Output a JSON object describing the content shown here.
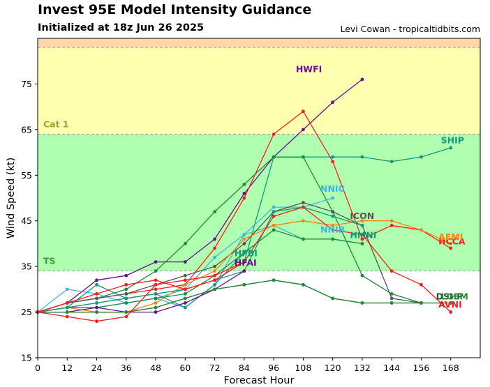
{
  "header": {
    "title": "Invest 95E Model Intensity Guidance",
    "subtitle": "Initialized at 18z Jun 26 2025",
    "credit": "Levi Cowan - tropicaltidbits.com"
  },
  "chart_data": {
    "type": "line",
    "title": "Invest 95E Model Intensity Guidance",
    "subtitle": "Initialized at 18z Jun 26 2025",
    "xlabel": "Forecast Hour",
    "ylabel": "Wind Speed (kt)",
    "xlim": [
      0,
      180
    ],
    "ylim": [
      15,
      85
    ],
    "xticks": [
      0,
      12,
      24,
      36,
      48,
      60,
      72,
      84,
      96,
      108,
      120,
      132,
      144,
      156,
      168
    ],
    "yticks": [
      15,
      25,
      35,
      45,
      55,
      65,
      75
    ],
    "grid": false,
    "bands": [
      {
        "label": "",
        "from": 15,
        "to": 34,
        "color": "#ffffff"
      },
      {
        "label": "TS",
        "from": 34,
        "to": 64,
        "color": "#b0ffb0",
        "label_color": "#3aa03a"
      },
      {
        "label": "Cat 1",
        "from": 64,
        "to": 83,
        "color": "#ffffb0",
        "label_color": "#a8a030"
      },
      {
        "label": "",
        "from": 83,
        "to": 85,
        "color": "#ffd8a8"
      }
    ],
    "series": [
      {
        "name": "HWFI",
        "color": "#6a0d91",
        "label_at": [
          105,
          77.6
        ],
        "x": [
          0,
          12,
          24,
          36,
          48,
          60,
          72,
          84,
          96,
          108,
          120,
          132
        ],
        "y": [
          25,
          27,
          32,
          33,
          36,
          36,
          41,
          51,
          59,
          65,
          71,
          76
        ]
      },
      {
        "name": "HCCA",
        "color": "#ff1a1a",
        "label_at": [
          163,
          39.8
        ],
        "x": [
          0,
          12,
          24,
          36,
          48,
          60,
          72,
          84,
          96,
          108,
          120,
          132,
          144,
          156,
          168
        ],
        "y": [
          25,
          27,
          28,
          29,
          30,
          31,
          39,
          50,
          64,
          69,
          58,
          41,
          44,
          43,
          39
        ]
      },
      {
        "name": "SHIP",
        "color": "#12997a",
        "label_at": [
          164,
          62
        ],
        "x": [
          0,
          12,
          24,
          36,
          48,
          60,
          72,
          84,
          96,
          108,
          120,
          132,
          144,
          156,
          168
        ],
        "y": [
          25,
          26,
          27,
          28,
          29,
          30,
          32,
          36,
          59,
          59,
          59,
          59,
          58,
          59,
          61
        ]
      },
      {
        "name": "",
        "color": "#1e8a3a",
        "x": [
          0,
          12,
          24,
          36,
          48,
          60,
          72,
          84,
          96,
          108,
          120,
          132,
          144,
          156
        ],
        "y": [
          25,
          27,
          28,
          30,
          34,
          40,
          47,
          53,
          59,
          59,
          47,
          33,
          29,
          27
        ]
      },
      {
        "name": "NNIC",
        "color": "#3fb6e0",
        "label_at": [
          115,
          51.4
        ],
        "x": [
          0,
          12,
          24,
          36,
          48,
          60,
          72,
          84,
          96,
          108,
          120
        ],
        "y": [
          25,
          26,
          26,
          27,
          28,
          30,
          37,
          42,
          48,
          48,
          50
        ]
      },
      {
        "name": "NNIB",
        "color": "#3fb6e0",
        "label_at": [
          115,
          42.4
        ],
        "x": [
          0,
          12,
          24,
          36,
          48,
          60,
          72,
          84,
          96,
          108,
          120,
          132
        ],
        "y": [
          25,
          30,
          29,
          27,
          28,
          26,
          31,
          42,
          44,
          41,
          41,
          40
        ]
      },
      {
        "name": "ICON",
        "color": "#555555",
        "label_at": [
          127,
          45.4
        ],
        "x": [
          0,
          12,
          24,
          36,
          48,
          60,
          72,
          84,
          96,
          108,
          120,
          132,
          144,
          156
        ],
        "y": [
          25,
          27,
          28,
          29,
          31,
          33,
          35,
          40,
          47,
          49,
          47,
          44,
          28,
          27
        ]
      },
      {
        "name": "AEMI",
        "color": "#ff7f0e",
        "label_at": [
          163,
          40.8
        ],
        "x": [
          0,
          12,
          24,
          36,
          48,
          60,
          72,
          84,
          96,
          108,
          120,
          132,
          144,
          156,
          168
        ],
        "y": [
          25,
          26,
          25,
          25,
          27,
          31,
          34,
          41,
          44,
          45,
          44,
          45,
          45,
          43,
          40
        ]
      },
      {
        "name": "HMNI",
        "color": "#12997a",
        "label_at": [
          127,
          41.2
        ],
        "x": [
          0,
          12,
          24,
          36,
          48,
          60,
          72,
          84,
          96,
          108,
          120,
          132
        ],
        "y": [
          25,
          26,
          27,
          28,
          29,
          30,
          32,
          34,
          47,
          48,
          46,
          44
        ]
      },
      {
        "name": "",
        "color": "#1e8a3a",
        "x": [
          0,
          12,
          24,
          36,
          48,
          60,
          72,
          84,
          96,
          108,
          120,
          132
        ],
        "y": [
          25,
          26,
          26,
          27,
          28,
          29,
          33,
          38,
          43,
          41,
          41,
          40
        ]
      },
      {
        "name": "HFBI",
        "color": "#12997a",
        "label_at": [
          80,
          37.2
        ],
        "x": [
          0,
          12,
          24,
          36,
          48,
          60,
          72,
          84
        ],
        "y": [
          25,
          26,
          31,
          28,
          29,
          26,
          31,
          38
        ]
      },
      {
        "name": "HFAI",
        "color": "#6a0d91",
        "label_at": [
          80,
          35.2
        ],
        "x": [
          0,
          12,
          24,
          36,
          48,
          60,
          72,
          84
        ],
        "y": [
          25,
          25,
          26,
          25,
          25,
          27,
          30,
          34
        ]
      },
      {
        "name": "DSHP",
        "color": "#1a5a1a",
        "label_at": [
          162,
          27.8
        ],
        "x": [
          0,
          12,
          24,
          36,
          48,
          60,
          72,
          84,
          96,
          108,
          120,
          132,
          144,
          156,
          168
        ],
        "y": [
          25,
          25,
          25,
          25,
          26,
          28,
          30,
          31,
          32,
          31,
          28,
          27,
          27,
          27,
          27
        ]
      },
      {
        "name": "LGEM",
        "color": "#2a8a3a",
        "label_at": [
          164,
          27.8
        ],
        "x": [
          0,
          12,
          24,
          36,
          48,
          60,
          72,
          84,
          96,
          108,
          120,
          132,
          144,
          156,
          168
        ],
        "y": [
          25,
          25,
          25,
          25,
          26,
          28,
          30,
          31,
          32,
          31,
          28,
          27,
          27,
          27,
          27
        ]
      },
      {
        "name": "AVNI",
        "color": "#ff1a1a",
        "label_at": [
          163,
          26
        ],
        "x": [
          0,
          12,
          24,
          36,
          48,
          60,
          72,
          84,
          96,
          108,
          120,
          132,
          144,
          156,
          168
        ],
        "y": [
          25,
          24,
          23,
          24,
          31,
          32,
          33,
          36,
          46,
          48,
          43,
          42,
          34,
          31,
          25
        ]
      },
      {
        "name": "",
        "color": "#ff1a1a",
        "x": [
          0,
          12,
          24,
          36,
          48,
          60,
          72,
          84
        ],
        "y": [
          25,
          27,
          29,
          31,
          32,
          30,
          32,
          36
        ]
      }
    ]
  }
}
